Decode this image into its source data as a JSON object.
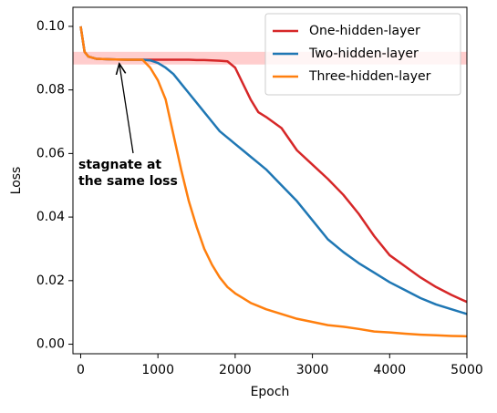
{
  "chart_data": {
    "type": "line",
    "xlabel": "Epoch",
    "ylabel": "Loss",
    "x": [
      0,
      50,
      100,
      200,
      400,
      600,
      800,
      900,
      1000,
      1100,
      1200,
      1300,
      1400,
      1500,
      1600,
      1700,
      1800,
      1900,
      2000,
      2100,
      2200,
      2300,
      2400,
      2600,
      2800,
      3000,
      3200,
      3400,
      3600,
      3800,
      4000,
      4200,
      4400,
      4600,
      4800,
      5000
    ],
    "series": [
      {
        "name": "One-hidden-layer",
        "color": "#d62728",
        "values": [
          0.1,
          0.092,
          0.0905,
          0.0898,
          0.0896,
          0.0895,
          0.0895,
          0.0895,
          0.0895,
          0.0895,
          0.0895,
          0.0895,
          0.0895,
          0.0894,
          0.0894,
          0.0893,
          0.0892,
          0.089,
          0.087,
          0.082,
          0.077,
          0.073,
          0.0715,
          0.068,
          0.061,
          0.0565,
          0.052,
          0.047,
          0.041,
          0.034,
          0.028,
          0.0245,
          0.021,
          0.018,
          0.0155,
          0.0133
        ]
      },
      {
        "name": "Two-hidden-layer",
        "color": "#1f77b4",
        "values": [
          0.1,
          0.092,
          0.0905,
          0.0898,
          0.0896,
          0.0895,
          0.0895,
          0.0893,
          0.0885,
          0.087,
          0.085,
          0.082,
          0.079,
          0.076,
          0.073,
          0.07,
          0.067,
          0.065,
          0.063,
          0.061,
          0.059,
          0.057,
          0.055,
          0.05,
          0.045,
          0.039,
          0.033,
          0.029,
          0.0255,
          0.0225,
          0.0195,
          0.017,
          0.0145,
          0.0125,
          0.011,
          0.0095
        ]
      },
      {
        "name": "Three-hidden-layer",
        "color": "#ff7f0e",
        "values": [
          0.1,
          0.092,
          0.0905,
          0.0898,
          0.0896,
          0.0895,
          0.0895,
          0.087,
          0.083,
          0.077,
          0.066,
          0.055,
          0.045,
          0.037,
          0.03,
          0.025,
          0.021,
          0.018,
          0.016,
          0.0145,
          0.013,
          0.012,
          0.011,
          0.0095,
          0.008,
          0.007,
          0.006,
          0.0055,
          0.0048,
          0.004,
          0.0037,
          0.0033,
          0.003,
          0.0028,
          0.0026,
          0.0025
        ]
      }
    ],
    "band": {
      "ylim": [
        0.088,
        0.092
      ],
      "color": "#ffc0c0"
    },
    "annotation": [
      "stagnate at",
      "the same loss"
    ],
    "xlim": [
      -100,
      5000
    ],
    "xticks": [
      0,
      1000,
      2000,
      3000,
      4000,
      5000
    ],
    "ylim": [
      -0.003,
      0.106
    ],
    "yticks": [
      {
        "value": 0,
        "label": "0.00"
      },
      {
        "value": 0.02,
        "label": "0.02"
      },
      {
        "value": 0.04,
        "label": "0.04"
      },
      {
        "value": 0.06,
        "label": "0.06"
      },
      {
        "value": 0.08,
        "label": "0.08"
      },
      {
        "value": 0.1,
        "label": "0.10"
      }
    ],
    "legend": "upper right"
  }
}
